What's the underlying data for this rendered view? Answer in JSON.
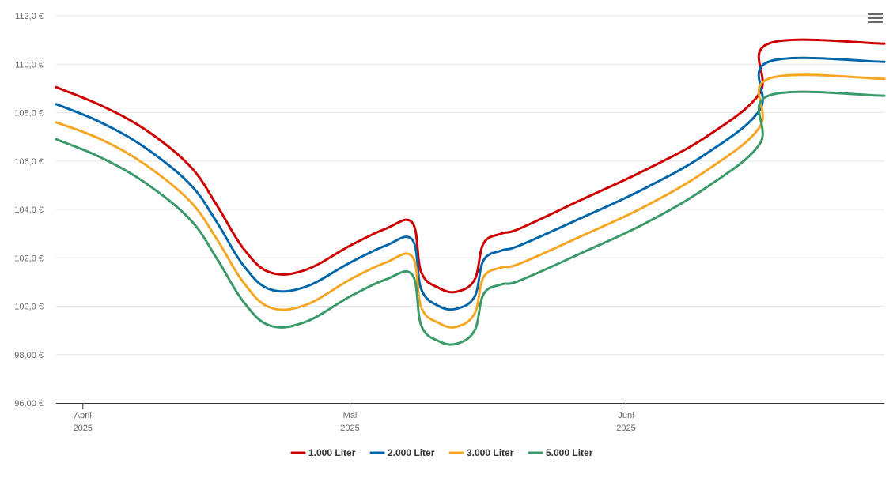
{
  "menu_icon": "hamburger-menu-icon",
  "chart_data": {
    "type": "line",
    "title": "",
    "xlabel": "",
    "ylabel": "",
    "ylim": [
      96,
      112
    ],
    "yticks": [
      96,
      98,
      100,
      102,
      104,
      106,
      108,
      110,
      112
    ],
    "ytick_labels": [
      "96,00 €",
      "98,00 €",
      "100,0 €",
      "102,0 €",
      "104,0 €",
      "106,0 €",
      "108,0 €",
      "110,0 €",
      "112,0 €"
    ],
    "xlim": [
      "2025-03-29",
      "2025-06-30"
    ],
    "xticks": [
      {
        "date": "2025-04-01",
        "month": "April",
        "year": "2025"
      },
      {
        "date": "2025-05-01",
        "month": "Mai",
        "year": "2025"
      },
      {
        "date": "2025-06-01",
        "month": "Juni",
        "year": "2025"
      }
    ],
    "grid": true,
    "legend_position": "bottom-center",
    "series": [
      {
        "name": "1.000 Liter",
        "color": "#cc0000",
        "points": [
          [
            "2025-03-29",
            109.05
          ],
          [
            "2025-04-03",
            108.3
          ],
          [
            "2025-04-08",
            107.3
          ],
          [
            "2025-04-13",
            105.8
          ],
          [
            "2025-04-16",
            104.2
          ],
          [
            "2025-04-19",
            102.4
          ],
          [
            "2025-04-22",
            101.4
          ],
          [
            "2025-04-26",
            101.5
          ],
          [
            "2025-05-01",
            102.5
          ],
          [
            "2025-05-05",
            103.2
          ],
          [
            "2025-05-08",
            103.45
          ],
          [
            "2025-05-09",
            101.4
          ],
          [
            "2025-05-11",
            100.75
          ],
          [
            "2025-05-13",
            100.6
          ],
          [
            "2025-05-15",
            101.1
          ],
          [
            "2025-05-16",
            102.6
          ],
          [
            "2025-05-18",
            103.0
          ],
          [
            "2025-05-20",
            103.2
          ],
          [
            "2025-05-27",
            104.4
          ],
          [
            "2025-06-03",
            105.6
          ],
          [
            "2025-06-10",
            107.0
          ],
          [
            "2025-06-16",
            108.8
          ],
          [
            "2025-06-17",
            110.85
          ],
          [
            "2025-06-30",
            110.85
          ]
        ]
      },
      {
        "name": "2.000 Liter",
        "color": "#0066aa",
        "points": [
          [
            "2025-03-29",
            108.35
          ],
          [
            "2025-04-03",
            107.6
          ],
          [
            "2025-04-08",
            106.55
          ],
          [
            "2025-04-13",
            105.05
          ],
          [
            "2025-04-16",
            103.5
          ],
          [
            "2025-04-19",
            101.7
          ],
          [
            "2025-04-22",
            100.7
          ],
          [
            "2025-04-26",
            100.8
          ],
          [
            "2025-05-01",
            101.8
          ],
          [
            "2025-05-05",
            102.5
          ],
          [
            "2025-05-08",
            102.75
          ],
          [
            "2025-05-09",
            100.7
          ],
          [
            "2025-05-11",
            100.0
          ],
          [
            "2025-05-13",
            99.9
          ],
          [
            "2025-05-15",
            100.4
          ],
          [
            "2025-05-16",
            101.9
          ],
          [
            "2025-05-18",
            102.3
          ],
          [
            "2025-05-20",
            102.5
          ],
          [
            "2025-05-27",
            103.65
          ],
          [
            "2025-06-03",
            104.85
          ],
          [
            "2025-06-10",
            106.3
          ],
          [
            "2025-06-16",
            108.1
          ],
          [
            "2025-06-17",
            110.1
          ],
          [
            "2025-06-30",
            110.1
          ]
        ]
      },
      {
        "name": "3.000 Liter",
        "color": "#f5a623",
        "points": [
          [
            "2025-03-29",
            107.6
          ],
          [
            "2025-04-03",
            106.9
          ],
          [
            "2025-04-08",
            105.85
          ],
          [
            "2025-04-13",
            104.35
          ],
          [
            "2025-04-16",
            102.8
          ],
          [
            "2025-04-19",
            101.0
          ],
          [
            "2025-04-22",
            99.95
          ],
          [
            "2025-04-26",
            100.05
          ],
          [
            "2025-05-01",
            101.1
          ],
          [
            "2025-05-05",
            101.8
          ],
          [
            "2025-05-08",
            102.05
          ],
          [
            "2025-05-09",
            99.95
          ],
          [
            "2025-05-11",
            99.3
          ],
          [
            "2025-05-13",
            99.15
          ],
          [
            "2025-05-15",
            99.7
          ],
          [
            "2025-05-16",
            101.2
          ],
          [
            "2025-05-18",
            101.6
          ],
          [
            "2025-05-20",
            101.75
          ],
          [
            "2025-05-27",
            102.9
          ],
          [
            "2025-06-03",
            104.1
          ],
          [
            "2025-06-10",
            105.6
          ],
          [
            "2025-06-16",
            107.4
          ],
          [
            "2025-06-17",
            109.4
          ],
          [
            "2025-06-30",
            109.4
          ]
        ]
      },
      {
        "name": "5.000 Liter",
        "color": "#3a9a6a",
        "points": [
          [
            "2025-03-29",
            106.9
          ],
          [
            "2025-04-03",
            106.15
          ],
          [
            "2025-04-08",
            105.1
          ],
          [
            "2025-04-13",
            103.6
          ],
          [
            "2025-04-16",
            102.0
          ],
          [
            "2025-04-19",
            100.2
          ],
          [
            "2025-04-22",
            99.2
          ],
          [
            "2025-04-26",
            99.35
          ],
          [
            "2025-05-01",
            100.4
          ],
          [
            "2025-05-05",
            101.1
          ],
          [
            "2025-05-08",
            101.3
          ],
          [
            "2025-05-09",
            99.2
          ],
          [
            "2025-05-11",
            98.55
          ],
          [
            "2025-05-13",
            98.45
          ],
          [
            "2025-05-15",
            99.0
          ],
          [
            "2025-05-16",
            100.5
          ],
          [
            "2025-05-18",
            100.9
          ],
          [
            "2025-05-20",
            101.05
          ],
          [
            "2025-05-27",
            102.2
          ],
          [
            "2025-06-03",
            103.4
          ],
          [
            "2025-06-10",
            104.9
          ],
          [
            "2025-06-16",
            106.7
          ],
          [
            "2025-06-17",
            108.7
          ],
          [
            "2025-06-30",
            108.7
          ]
        ]
      }
    ]
  }
}
